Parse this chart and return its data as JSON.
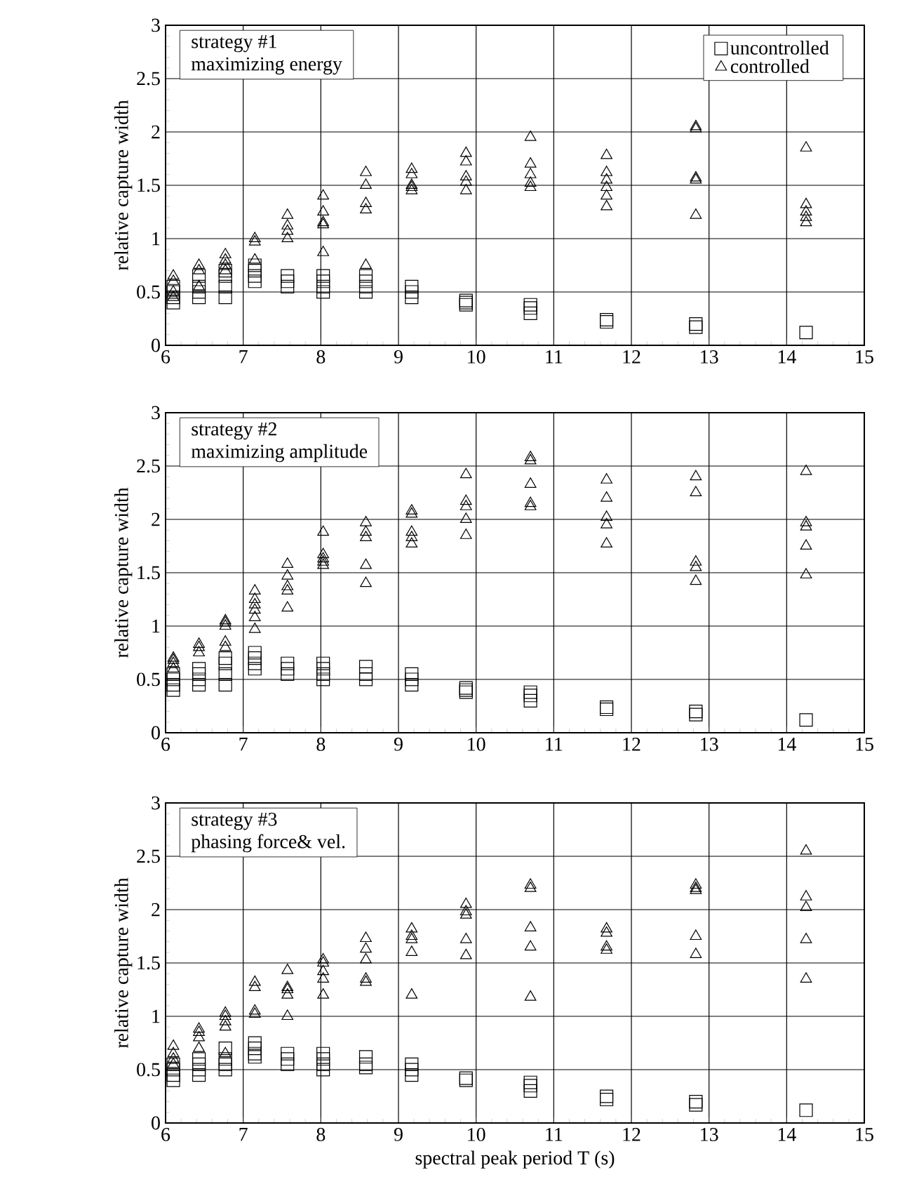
{
  "chart_data": [
    {
      "type": "scatter",
      "title": "strategy #1",
      "subtitle": "maximizing energy",
      "ylabel": "relative capture width",
      "xlim": [
        6,
        15
      ],
      "ylim": [
        0,
        3
      ],
      "xticks": [
        6,
        7,
        8,
        9,
        10,
        11,
        12,
        13,
        14,
        15
      ],
      "yticks": [
        0,
        0.5,
        1,
        1.5,
        2,
        2.5,
        3
      ],
      "grid": true,
      "legend": "top right",
      "series": [
        {
          "name": "uncontrolled",
          "color": "#000000",
          "marker": "square",
          "x": [
            6.1,
            6.1,
            6.1,
            6.1,
            6.43,
            6.43,
            6.43,
            6.43,
            6.77,
            6.77,
            6.77,
            6.77,
            7.15,
            7.15,
            7.15,
            7.15,
            7.57,
            7.57,
            7.57,
            8.03,
            8.03,
            8.03,
            8.03,
            8.58,
            8.58,
            8.58,
            8.58,
            9.17,
            9.17,
            9.17,
            9.87,
            9.87,
            9.87,
            10.7,
            10.7,
            10.7,
            11.68,
            11.68,
            12.83,
            12.83,
            14.25
          ],
          "values": [
            0.4,
            0.45,
            0.5,
            0.55,
            0.45,
            0.5,
            0.55,
            0.65,
            0.45,
            0.55,
            0.65,
            0.7,
            0.6,
            0.65,
            0.7,
            0.75,
            0.55,
            0.6,
            0.65,
            0.5,
            0.55,
            0.6,
            0.65,
            0.5,
            0.55,
            0.6,
            0.65,
            0.45,
            0.5,
            0.55,
            0.38,
            0.4,
            0.42,
            0.3,
            0.35,
            0.38,
            0.22,
            0.24,
            0.17,
            0.2,
            0.12
          ]
        },
        {
          "name": "controlled",
          "color": "#000000",
          "marker": "triangle",
          "x": [
            6.1,
            6.1,
            6.1,
            6.1,
            6.43,
            6.43,
            6.43,
            6.77,
            6.77,
            6.77,
            6.77,
            7.15,
            7.15,
            7.15,
            7.57,
            7.57,
            7.57,
            7.57,
            8.03,
            8.03,
            8.03,
            8.03,
            8.03,
            8.58,
            8.58,
            8.58,
            8.58,
            8.58,
            9.17,
            9.17,
            9.17,
            9.17,
            9.17,
            9.87,
            9.87,
            9.87,
            9.87,
            9.87,
            10.7,
            10.7,
            10.7,
            10.7,
            10.7,
            11.68,
            11.68,
            11.68,
            11.68,
            11.68,
            11.68,
            12.83,
            12.83,
            12.83,
            12.83,
            12.83,
            14.25,
            14.25,
            14.25,
            14.25,
            14.25
          ],
          "values": [
            0.45,
            0.5,
            0.6,
            0.65,
            0.55,
            0.7,
            0.75,
            0.7,
            0.75,
            0.8,
            0.85,
            0.8,
            0.97,
            1.0,
            1.0,
            1.07,
            1.12,
            1.22,
            0.87,
            1.13,
            1.15,
            1.25,
            1.4,
            0.75,
            1.27,
            1.33,
            1.5,
            1.62,
            1.45,
            1.48,
            1.5,
            1.6,
            1.65,
            1.45,
            1.53,
            1.58,
            1.72,
            1.8,
            1.48,
            1.52,
            1.6,
            1.7,
            1.95,
            1.3,
            1.4,
            1.48,
            1.55,
            1.62,
            1.78,
            1.22,
            1.55,
            1.57,
            2.03,
            2.05,
            1.15,
            1.2,
            1.25,
            1.32,
            1.85
          ]
        }
      ]
    },
    {
      "type": "scatter",
      "title": "strategy #2",
      "subtitle": "maximizing amplitude",
      "ylabel": "relative capture width",
      "xlim": [
        6,
        15
      ],
      "ylim": [
        0,
        3
      ],
      "xticks": [
        6,
        7,
        8,
        9,
        10,
        11,
        12,
        13,
        14,
        15
      ],
      "yticks": [
        0,
        0.5,
        1,
        1.5,
        2,
        2.5,
        3
      ],
      "grid": true,
      "series": [
        {
          "color": "#000000",
          "marker": "square",
          "x": [
            6.1,
            6.1,
            6.1,
            6.1,
            6.43,
            6.43,
            6.43,
            6.43,
            6.77,
            6.77,
            6.77,
            6.77,
            7.15,
            7.15,
            7.15,
            7.15,
            7.57,
            7.57,
            7.57,
            8.03,
            8.03,
            8.03,
            8.03,
            8.58,
            8.58,
            8.58,
            9.17,
            9.17,
            9.17,
            9.87,
            9.87,
            9.87,
            10.7,
            10.7,
            10.7,
            11.68,
            11.68,
            12.83,
            12.83,
            14.25
          ],
          "values": [
            0.4,
            0.45,
            0.5,
            0.55,
            0.45,
            0.5,
            0.55,
            0.6,
            0.45,
            0.55,
            0.65,
            0.7,
            0.6,
            0.65,
            0.7,
            0.75,
            0.55,
            0.6,
            0.65,
            0.5,
            0.55,
            0.6,
            0.65,
            0.5,
            0.55,
            0.62,
            0.45,
            0.5,
            0.55,
            0.38,
            0.4,
            0.42,
            0.3,
            0.35,
            0.38,
            0.22,
            0.24,
            0.17,
            0.2,
            0.12
          ]
        },
        {
          "color": "#000000",
          "marker": "triangle",
          "x": [
            6.1,
            6.1,
            6.1,
            6.1,
            6.43,
            6.43,
            6.43,
            6.77,
            6.77,
            6.77,
            6.77,
            6.77,
            7.15,
            7.15,
            7.15,
            7.15,
            7.15,
            7.15,
            7.57,
            7.57,
            7.57,
            7.57,
            7.57,
            8.03,
            8.03,
            8.03,
            8.03,
            8.03,
            8.58,
            8.58,
            8.58,
            8.58,
            8.58,
            9.17,
            9.17,
            9.17,
            9.17,
            9.17,
            9.87,
            9.87,
            9.87,
            9.87,
            9.87,
            10.7,
            10.7,
            10.7,
            10.7,
            10.7,
            11.68,
            11.68,
            11.68,
            11.68,
            11.68,
            12.83,
            12.83,
            12.83,
            12.83,
            12.83,
            14.25,
            14.25,
            14.25,
            14.25,
            14.25
          ],
          "values": [
            0.6,
            0.65,
            0.68,
            0.7,
            0.75,
            0.8,
            0.83,
            0.8,
            0.85,
            1.0,
            1.03,
            1.05,
            0.97,
            1.08,
            1.15,
            1.2,
            1.25,
            1.33,
            1.17,
            1.33,
            1.37,
            1.47,
            1.58,
            1.57,
            1.6,
            1.63,
            1.67,
            1.88,
            1.4,
            1.57,
            1.83,
            1.88,
            1.97,
            1.77,
            1.83,
            1.88,
            2.05,
            2.08,
            1.85,
            2.0,
            2.12,
            2.17,
            2.42,
            2.12,
            2.15,
            2.33,
            2.55,
            2.58,
            1.77,
            1.95,
            2.02,
            2.2,
            2.37,
            1.42,
            1.55,
            1.6,
            2.25,
            2.4,
            1.48,
            1.75,
            1.93,
            1.97,
            2.45
          ]
        }
      ]
    },
    {
      "type": "scatter",
      "title": "strategy #3",
      "subtitle": "phasing force&  vel.",
      "xlabel": "spectral peak period T (s)",
      "ylabel": "relative capture width",
      "xlim": [
        6,
        15
      ],
      "ylim": [
        0,
        3
      ],
      "xticks": [
        6,
        7,
        8,
        9,
        10,
        11,
        12,
        13,
        14,
        15
      ],
      "yticks": [
        0,
        0.5,
        1,
        1.5,
        2,
        2.5,
        3
      ],
      "grid": true,
      "series": [
        {
          "color": "#000000",
          "marker": "square",
          "x": [
            6.1,
            6.1,
            6.1,
            6.1,
            6.43,
            6.43,
            6.43,
            6.43,
            6.77,
            6.77,
            6.77,
            6.77,
            7.15,
            7.15,
            7.15,
            7.15,
            7.57,
            7.57,
            7.57,
            8.03,
            8.03,
            8.03,
            8.03,
            8.58,
            8.58,
            8.58,
            9.17,
            9.17,
            9.17,
            9.87,
            9.87,
            10.7,
            10.7,
            10.7,
            11.68,
            11.68,
            12.83,
            12.83,
            14.25
          ],
          "values": [
            0.4,
            0.45,
            0.5,
            0.55,
            0.45,
            0.5,
            0.55,
            0.6,
            0.5,
            0.55,
            0.6,
            0.7,
            0.62,
            0.65,
            0.7,
            0.75,
            0.55,
            0.6,
            0.65,
            0.5,
            0.55,
            0.6,
            0.65,
            0.52,
            0.55,
            0.62,
            0.45,
            0.5,
            0.55,
            0.4,
            0.42,
            0.3,
            0.35,
            0.38,
            0.22,
            0.25,
            0.17,
            0.2,
            0.12
          ]
        },
        {
          "color": "#000000",
          "marker": "triangle",
          "x": [
            6.1,
            6.1,
            6.1,
            6.1,
            6.43,
            6.43,
            6.43,
            6.43,
            6.77,
            6.77,
            6.77,
            6.77,
            6.77,
            7.15,
            7.15,
            7.15,
            7.15,
            7.57,
            7.57,
            7.57,
            7.57,
            7.57,
            8.03,
            8.03,
            8.03,
            8.03,
            8.03,
            8.58,
            8.58,
            8.58,
            8.58,
            8.58,
            9.17,
            9.17,
            9.17,
            9.17,
            9.17,
            9.87,
            9.87,
            9.87,
            9.87,
            9.87,
            10.7,
            10.7,
            10.7,
            10.7,
            10.7,
            11.68,
            11.68,
            11.68,
            11.68,
            12.83,
            12.83,
            12.83,
            12.83,
            12.83,
            14.25,
            14.25,
            14.25,
            14.25,
            14.25
          ],
          "values": [
            0.55,
            0.6,
            0.65,
            0.72,
            0.7,
            0.8,
            0.85,
            0.88,
            0.65,
            0.9,
            0.95,
            1.0,
            1.03,
            1.02,
            1.05,
            1.27,
            1.32,
            1.0,
            1.2,
            1.25,
            1.27,
            1.43,
            1.2,
            1.35,
            1.42,
            1.5,
            1.53,
            1.32,
            1.35,
            1.53,
            1.63,
            1.73,
            1.2,
            1.6,
            1.72,
            1.75,
            1.82,
            1.57,
            1.72,
            1.95,
            1.98,
            2.05,
            1.18,
            1.65,
            1.83,
            2.2,
            2.23,
            1.62,
            1.65,
            1.78,
            1.82,
            1.58,
            1.75,
            2.18,
            2.2,
            2.23,
            1.35,
            1.72,
            2.02,
            2.12,
            2.55
          ]
        }
      ]
    }
  ]
}
